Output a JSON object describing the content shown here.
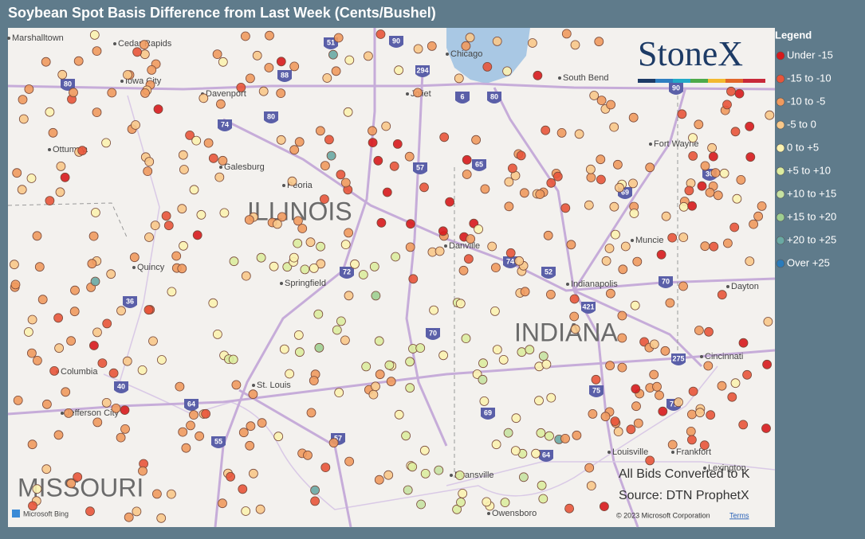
{
  "title": "Soybean Spot Basis Difference from Last Week (Cents/Bushel)",
  "logo": "StoneX",
  "legend": {
    "title": "Legend",
    "items": [
      {
        "label": "Under -15",
        "color": "#d7191c"
      },
      {
        "label": "-15 to -10",
        "color": "#e8553a"
      },
      {
        "label": "-10 to -5",
        "color": "#f09a5e"
      },
      {
        "label": "-5 to 0",
        "color": "#f8c88a"
      },
      {
        "label": "0 to +5",
        "color": "#fbf2b0"
      },
      {
        "label": "+5 to +10",
        "color": "#dcec9f"
      },
      {
        "label": "+10 to +15",
        "color": "#c6e2a2"
      },
      {
        "label": "+15 to +20",
        "color": "#9fcf91"
      },
      {
        "label": "+20 to +25",
        "color": "#6aa9a3"
      },
      {
        "label": "Over +25",
        "color": "#2b7bba"
      }
    ]
  },
  "states": [
    "ILLINOIS",
    "INDIANA",
    "MISSOURI"
  ],
  "cities": [
    "Marshalltown",
    "Cedar Rapids",
    "Iowa City",
    "Davenport",
    "Chicago",
    "South Bend",
    "Joliet",
    "Ottumwa",
    "Galesburg",
    "Peoria",
    "Quincy",
    "Springfield",
    "Danville",
    "Indianapolis",
    "Muncie",
    "Fort Wayne",
    "Dayton",
    "Cincinnati",
    "Columbia",
    "Jefferson City",
    "St. Louis",
    "Evansville",
    "Owensboro",
    "Louisville",
    "Frankfort",
    "Lexington"
  ],
  "highways": [
    "80",
    "88",
    "74",
    "80",
    "90",
    "294",
    "57",
    "65",
    "74",
    "52",
    "421",
    "70",
    "69",
    "72",
    "70",
    "36",
    "40",
    "64",
    "55",
    "57",
    "69",
    "64",
    "71",
    "275",
    "30",
    "75",
    "80",
    "90",
    "51",
    "6"
  ],
  "notes": [
    "All Bids Converted to K",
    "Source: DTN ProphetX"
  ],
  "attribution": {
    "bing": "Microsoft Bing",
    "copyright": "© 2023 Microsoft Corporation",
    "terms": "Terms"
  }
}
